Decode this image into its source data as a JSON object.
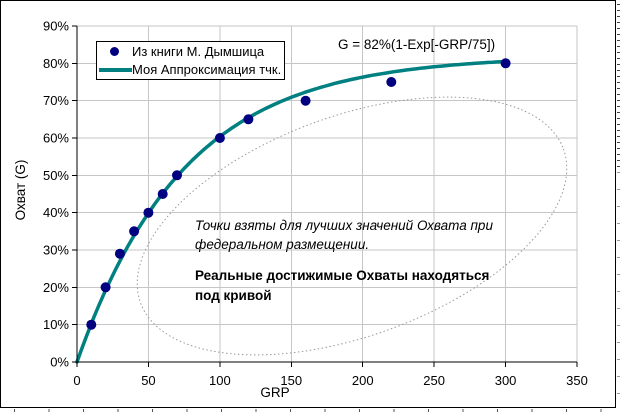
{
  "chart_data": {
    "type": "scatter",
    "title": "",
    "xlabel": "GRP",
    "ylabel": "Охват (G)",
    "xlim": [
      0,
      350
    ],
    "ylim_pct": [
      0,
      90
    ],
    "x_ticks": [
      0,
      50,
      100,
      150,
      200,
      250,
      300,
      350
    ],
    "y_tick_labels": [
      "0%",
      "10%",
      "20%",
      "30%",
      "40%",
      "50%",
      "60%",
      "70%",
      "80%",
      "90%"
    ],
    "grid": true,
    "legend_position": "inside-top-left",
    "series": [
      {
        "name": "Из книги М. Дымшица",
        "type": "scatter",
        "marker": "circle",
        "color": "#000080",
        "points": [
          [
            10,
            10
          ],
          [
            20,
            20
          ],
          [
            30,
            29
          ],
          [
            40,
            35
          ],
          [
            50,
            40
          ],
          [
            60,
            45
          ],
          [
            70,
            50
          ],
          [
            100,
            60
          ],
          [
            120,
            65
          ],
          [
            160,
            70
          ],
          [
            220,
            75
          ],
          [
            300,
            80
          ]
        ]
      },
      {
        "name": "Моя Аппроксимация тчк.",
        "type": "line",
        "color": "#008080",
        "formula_label": "G = 82%(1-Exp[-GRP/75])",
        "formula": {
          "asymptote_pct": 82,
          "decay_grp": 75,
          "x_start": 0,
          "x_end": 300
        }
      }
    ],
    "annotations": {
      "note_italic": "Точки взяты для лучших значений Охвата при федеральном размещении.",
      "note_bold": "Реальные достижимые Охваты находяться под кривой"
    },
    "highlight_ellipse": {
      "style": "dotted",
      "color": "#999999"
    }
  },
  "colors": {
    "grid": "#c6c6c6",
    "axis": "#000000",
    "background": "#ffffff"
  }
}
